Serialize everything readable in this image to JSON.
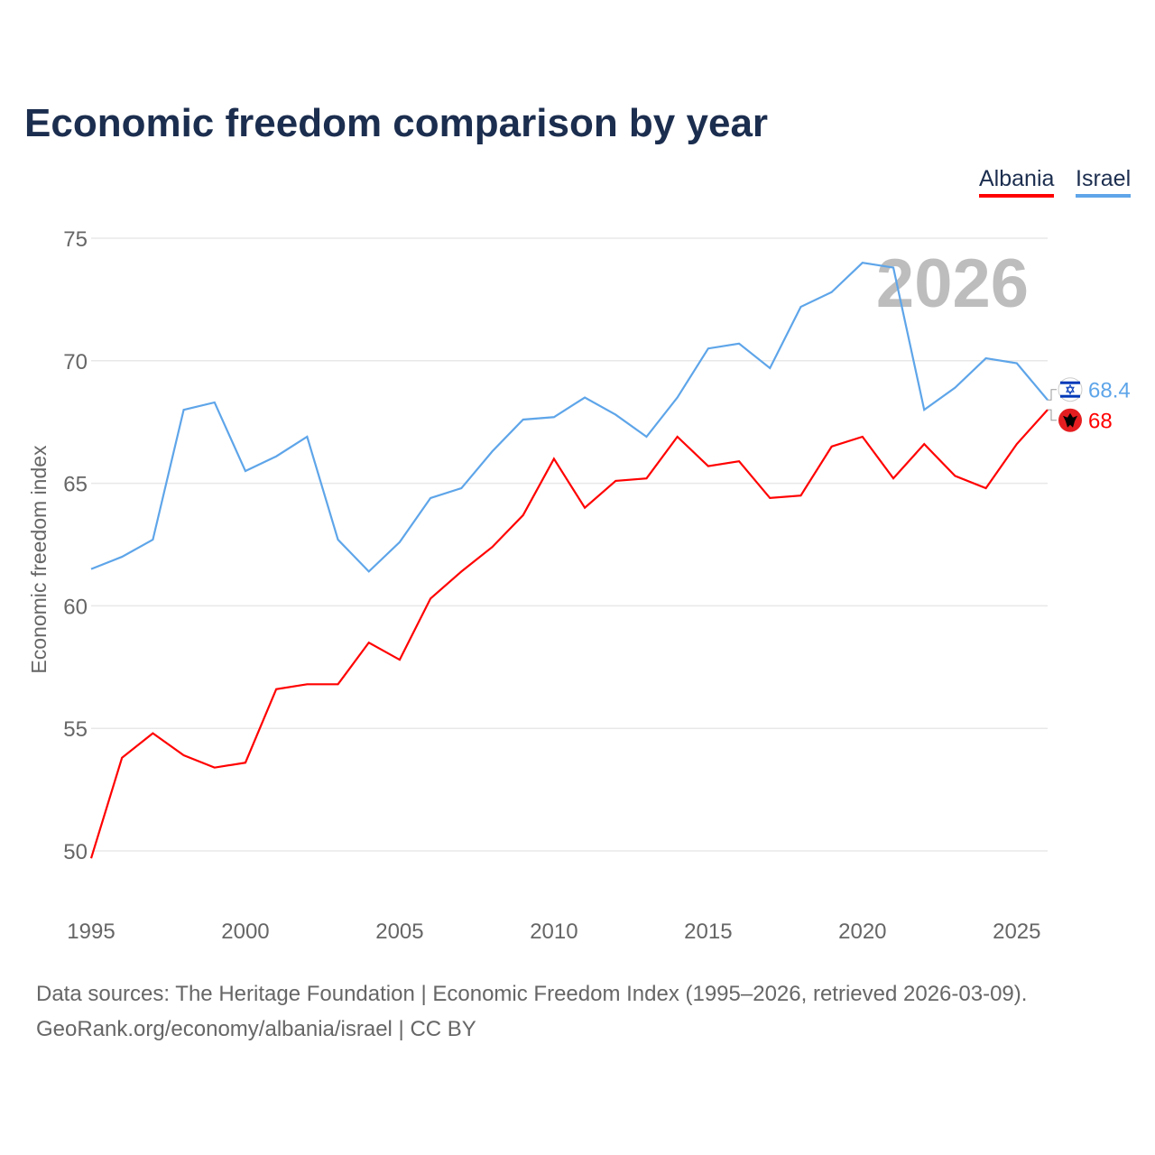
{
  "chart_data": {
    "type": "line",
    "title": "Economic freedom comparison by year",
    "xlabel": "",
    "ylabel": "Economic freedom index",
    "ylim": [
      50,
      75
    ],
    "xlim": [
      1995,
      2026
    ],
    "yticks": [
      50,
      55,
      60,
      65,
      70,
      75
    ],
    "xticks": [
      1995,
      2000,
      2005,
      2010,
      2015,
      2020,
      2025
    ],
    "grid": true,
    "legend_position": "top-right",
    "watermark_year": "2026",
    "x": [
      1995,
      1996,
      1997,
      1998,
      1999,
      2000,
      2001,
      2002,
      2003,
      2004,
      2005,
      2006,
      2007,
      2008,
      2009,
      2010,
      2011,
      2012,
      2013,
      2014,
      2015,
      2016,
      2017,
      2018,
      2019,
      2020,
      2021,
      2022,
      2023,
      2024,
      2025,
      2026
    ],
    "series": [
      {
        "name": "Albania",
        "color": "#ff0000",
        "end_label": "68",
        "icon": "albania-flag-icon",
        "values": [
          49.7,
          53.8,
          54.8,
          53.9,
          53.4,
          53.6,
          56.6,
          56.8,
          56.8,
          58.5,
          57.8,
          60.3,
          61.4,
          62.4,
          63.7,
          66.0,
          64.0,
          65.1,
          65.2,
          66.9,
          65.7,
          65.9,
          64.4,
          64.5,
          66.5,
          66.9,
          65.2,
          66.6,
          65.3,
          64.8,
          66.6,
          68.0
        ]
      },
      {
        "name": "Israel",
        "color": "#5ea5e9",
        "end_label": "68.4",
        "icon": "israel-flag-icon",
        "values": [
          61.5,
          62.0,
          62.7,
          68.0,
          68.3,
          65.5,
          66.1,
          66.9,
          62.7,
          61.4,
          62.6,
          64.4,
          64.8,
          66.3,
          67.6,
          67.7,
          68.5,
          67.8,
          66.9,
          68.5,
          70.5,
          70.7,
          69.7,
          72.2,
          72.8,
          74.0,
          73.8,
          68.0,
          68.9,
          70.1,
          69.9,
          68.4
        ]
      }
    ]
  },
  "footer": {
    "line1": "Data sources: The Heritage Foundation | Economic Freedom Index (1995–2026, retrieved 2026-03-09).",
    "line2": "GeoRank.org/economy/albania/israel | CC BY"
  }
}
